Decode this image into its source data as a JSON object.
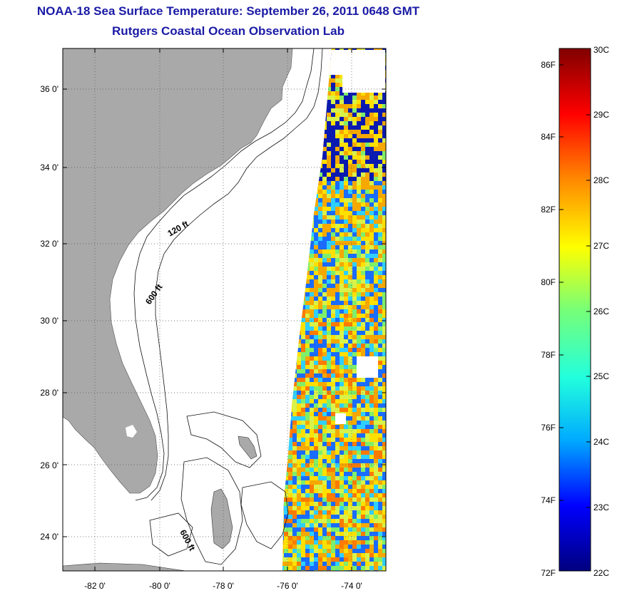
{
  "header": {
    "title": "NOAA-18 Sea Surface Temperature:  September 26, 2011 0648 GMT",
    "subtitle": "Rutgers Coastal Ocean Observation Lab"
  },
  "map": {
    "lat_ticks": [
      "24 0'",
      "26 0'",
      "28 0'",
      "30 0'",
      "32 0'",
      "34 0'",
      "36 0'"
    ],
    "lon_ticks": [
      "-82 0'",
      "-80 0'",
      "-78 0'",
      "-76 0'",
      "-74 0'"
    ],
    "contour_labels": [
      "120 ft",
      "600 ft",
      "600 ft"
    ],
    "colors": {
      "land": "#a9a9a9",
      "ocean": "#ffffff",
      "frame": "#000000"
    }
  },
  "colorbar": {
    "fahrenheit": [
      "86F",
      "84F",
      "82F",
      "80F",
      "78F",
      "76F",
      "74F",
      "72F"
    ],
    "celsius": [
      "30C",
      "29C",
      "28C",
      "27C",
      "26C",
      "25C",
      "24C",
      "23C",
      "22C"
    ],
    "colors": [
      "#00007f",
      "#0000ff",
      "#00aaff",
      "#22ffdd",
      "#77ff77",
      "#ffff00",
      "#ff8800",
      "#ff0000",
      "#800000"
    ]
  }
}
